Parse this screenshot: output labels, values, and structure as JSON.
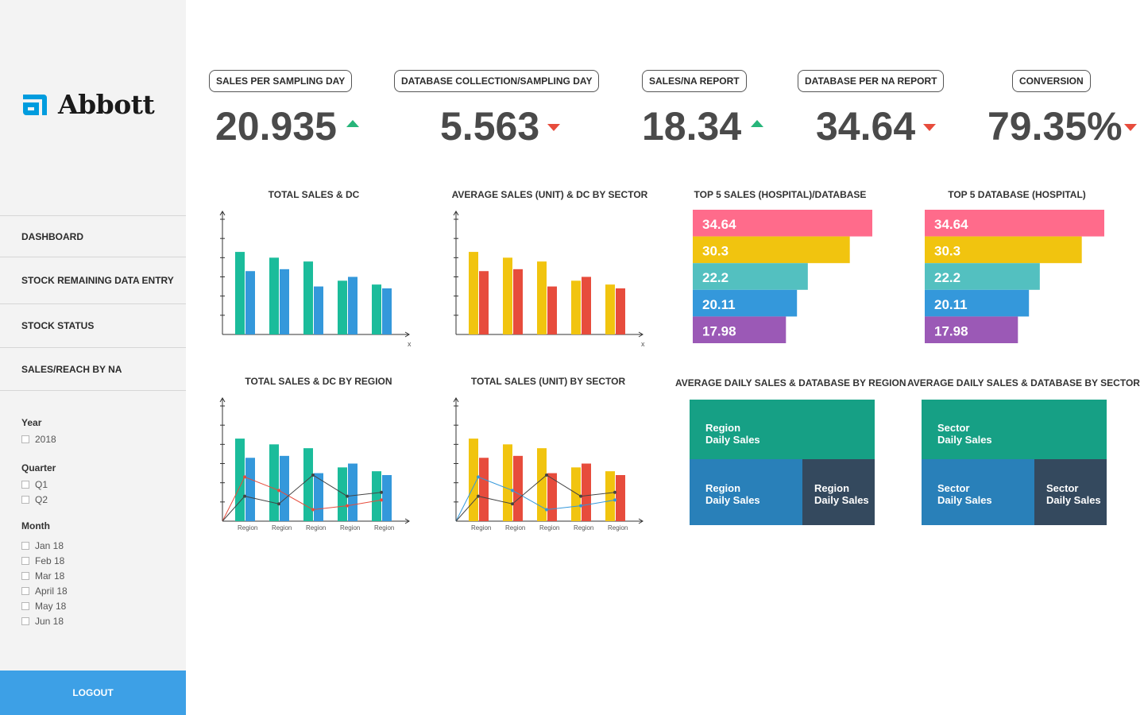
{
  "sidebar": {
    "brand": "Abbott",
    "nav": [
      {
        "label": "DASHBOARD"
      },
      {
        "label": "STOCK REMAINING DATA ENTRY"
      },
      {
        "label": "STOCK STATUS"
      },
      {
        "label": "SALES/REACH BY NA"
      }
    ],
    "filters": {
      "year": {
        "title": "Year",
        "options": [
          "2018"
        ]
      },
      "quarter": {
        "title": "Quarter",
        "options": [
          "Q1",
          "Q2"
        ]
      },
      "month": {
        "title": "Month",
        "options": [
          "Jan 18",
          "Feb 18",
          "Mar 18",
          "April 18",
          "May 18",
          "Jun 18"
        ]
      }
    },
    "logout_label": "LOGOUT"
  },
  "kpis": [
    {
      "label": "SALES PER SAMPLING DAY",
      "value": "20.935",
      "trend": "up"
    },
    {
      "label": "DATABASE COLLECTION/SAMPLING DAY",
      "value": "5.563",
      "trend": "down"
    },
    {
      "label": "SALES/NA REPORT",
      "value": "18.34",
      "trend": "up"
    },
    {
      "label": "DATABASE PER NA REPORT",
      "value": "34.64",
      "trend": "down"
    },
    {
      "label": "CONVERSION",
      "value": "79.35%",
      "trend": "down"
    }
  ],
  "colors": {
    "green": "#1bbc9b",
    "blue": "#3498db",
    "yellow": "#f1c40f",
    "red": "#e74c3c",
    "pink": "#ff6b8b",
    "teal": "#53c0c0",
    "purple": "#9b59b6",
    "tm_green": "#16a085",
    "tm_blue": "#2980b9",
    "tm_dark": "#34495e",
    "up": "#27b57a",
    "down": "#e74c3c",
    "logout": "#3da0e6"
  },
  "chart_data": [
    {
      "type": "bar",
      "title": "TOTAL SALES & DC",
      "xlabel": "x",
      "series": [
        {
          "values": [
            43,
            40,
            38,
            28,
            26
          ]
        },
        {
          "values": [
            33,
            34,
            25,
            30,
            24
          ]
        }
      ],
      "ylim": [
        0,
        60
      ]
    },
    {
      "type": "bar",
      "title": "AVERAGE SALES (UNIT) & DC BY SECTOR",
      "xlabel": "x",
      "series": [
        {
          "values": [
            43,
            40,
            38,
            28,
            26
          ]
        },
        {
          "values": [
            33,
            34,
            25,
            30,
            24
          ]
        }
      ],
      "ylim": [
        0,
        60
      ]
    },
    {
      "type": "bar",
      "title": "TOTAL SALES & DC BY REGION",
      "categories": [
        "Region",
        "Region",
        "Region",
        "Region",
        "Region"
      ],
      "series": [
        {
          "values": [
            43,
            40,
            38,
            28,
            26
          ]
        },
        {
          "values": [
            33,
            34,
            25,
            30,
            24
          ]
        },
        {
          "values": [
            23,
            16,
            6,
            8,
            11
          ]
        },
        {
          "values": [
            13,
            9,
            24,
            13,
            15
          ]
        }
      ],
      "ylim": [
        0,
        60
      ]
    },
    {
      "type": "bar",
      "title": "TOTAL SALES (UNIT) BY SECTOR",
      "categories": [
        "Region",
        "Region",
        "Region",
        "Region",
        "Region"
      ],
      "series": [
        {
          "values": [
            43,
            40,
            38,
            28,
            26
          ]
        },
        {
          "values": [
            33,
            34,
            25,
            30,
            24
          ]
        },
        {
          "values": [
            23,
            16,
            6,
            8,
            11
          ]
        },
        {
          "values": [
            13,
            9,
            24,
            13,
            15
          ]
        }
      ],
      "ylim": [
        0,
        60
      ]
    },
    {
      "type": "bar",
      "orientation": "horizontal",
      "title": "TOP 5 SALES (HOSPITAL)/DATABASE",
      "values": [
        34.64,
        30.3,
        22.2,
        20.11,
        17.98
      ],
      "labels": [
        "34.64",
        "30.3",
        "22.2",
        "20.11",
        "17.98"
      ]
    },
    {
      "type": "bar",
      "orientation": "horizontal",
      "title": "TOP 5 DATABASE (HOSPITAL)",
      "values": [
        34.64,
        30.3,
        22.2,
        20.11,
        17.98
      ],
      "labels": [
        "34.64",
        "30.3",
        "22.2",
        "20.11",
        "17.98"
      ]
    },
    {
      "type": "treemap",
      "title": "AVERAGE DAILY SALES & DATABASE BY REGION",
      "cells": [
        {
          "line1": "Region",
          "line2": "Daily Sales"
        },
        {
          "line1": "Region",
          "line2": "Daily Sales"
        },
        {
          "line1": "Region",
          "line2": "Daily Sales"
        }
      ]
    },
    {
      "type": "treemap",
      "title": "AVERAGE DAILY SALES & DATABASE BY SECTOR",
      "cells": [
        {
          "line1": "Sector",
          "line2": "Daily Sales"
        },
        {
          "line1": "Sector",
          "line2": "Daily Sales"
        },
        {
          "line1": "Sector",
          "line2": "Daily Sales"
        }
      ]
    }
  ]
}
